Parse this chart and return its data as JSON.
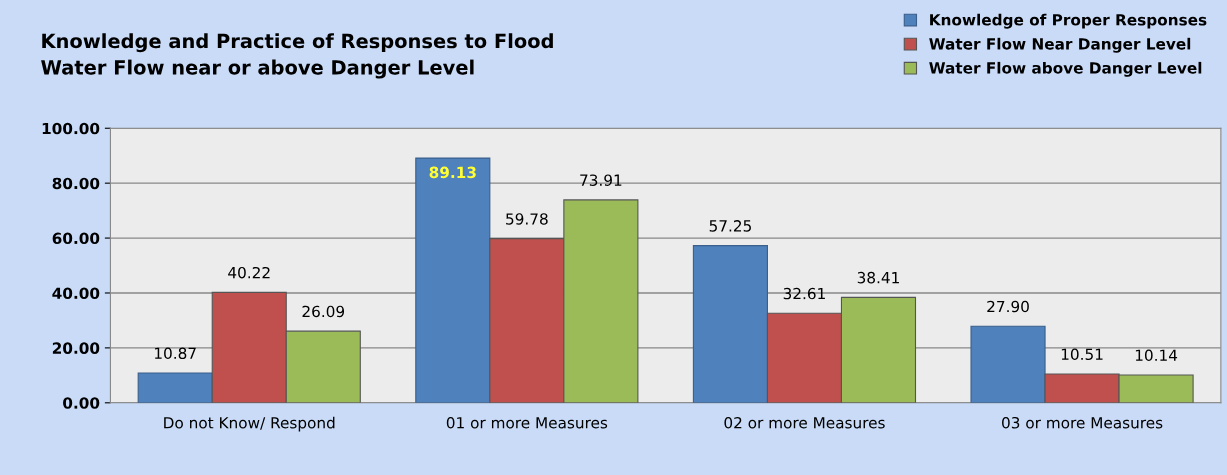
{
  "chart_data": {
    "type": "bar",
    "title": "Knowledge and Practice of Responses to Flood\nWater Flow near or above Danger Level",
    "categories": [
      "Do not Know/ Respond",
      "01 or more Measures",
      "02 or more Measures",
      "03 or more Measures"
    ],
    "series": [
      {
        "name": "Knowledge of Proper Responses",
        "color": "#4f81bd",
        "values": [
          10.87,
          89.13,
          57.25,
          27.9
        ],
        "value_labels": [
          "10.87",
          "89.13",
          "57.25",
          "27.90"
        ]
      },
      {
        "name": "Water Flow Near Danger Level",
        "color": "#c0504d",
        "values": [
          40.22,
          59.78,
          32.61,
          10.51
        ],
        "value_labels": [
          "40.22",
          "59.78",
          "32.61",
          "10.51"
        ]
      },
      {
        "name": "Water Flow above Danger Level",
        "color": "#9bbb59",
        "values": [
          26.09,
          73.91,
          38.41,
          10.14
        ],
        "value_labels": [
          "26.09",
          "73.91",
          "38.41",
          "10.14"
        ]
      }
    ],
    "ylim": [
      0,
      100
    ],
    "yticks": [
      {
        "value": 0,
        "label": "0.00"
      },
      {
        "value": 20,
        "label": "20.00"
      },
      {
        "value": 40,
        "label": "40.00"
      },
      {
        "value": 60,
        "label": "60.00"
      },
      {
        "value": 80,
        "label": "80.00"
      },
      {
        "value": 100,
        "label": "100.00"
      }
    ],
    "grid": "y",
    "legend": "top right"
  }
}
